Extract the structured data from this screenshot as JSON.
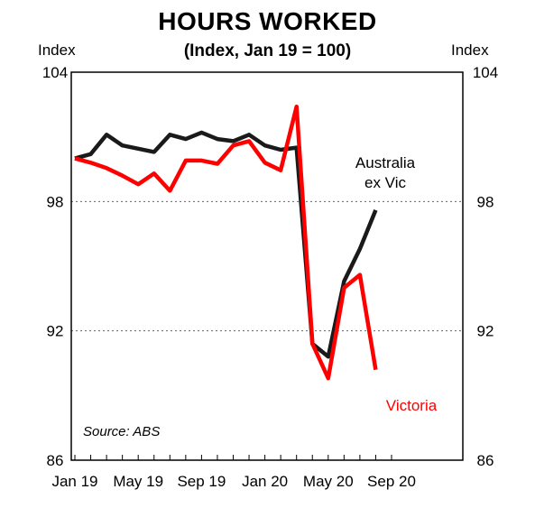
{
  "chart_data": {
    "type": "line",
    "title": "HOURS WORKED",
    "subtitle": "(Index, Jan 19 = 100)",
    "ylabel_left": "Index",
    "ylabel_right": "Index",
    "ylim": [
      86,
      104
    ],
    "yticks": [
      "104",
      "98",
      "92",
      "86"
    ],
    "xticks": [
      "Jan 19",
      "May 19",
      "Sep 19",
      "Jan 20",
      "May 20",
      "Sep 20"
    ],
    "grid": "horizontal dotted",
    "x": [
      "2019-01",
      "2019-02",
      "2019-03",
      "2019-04",
      "2019-05",
      "2019-06",
      "2019-07",
      "2019-08",
      "2019-09",
      "2019-10",
      "2019-11",
      "2019-12",
      "2020-01",
      "2020-02",
      "2020-03",
      "2020-04",
      "2020-05",
      "2020-06",
      "2020-07",
      "2020-08",
      "2020-09"
    ],
    "series": [
      {
        "name": "Australia ex Vic",
        "label_line1": "Australia",
        "label_line2": "ex Vic",
        "color": "#1a1a1a",
        "values": [
          100,
          100.2,
          101.1,
          100.6,
          100.45,
          100.3,
          101.1,
          100.9,
          101.2,
          100.9,
          100.8,
          101.1,
          100.6,
          100.4,
          100.5,
          91.4,
          90.8,
          94.3,
          95.8,
          97.6,
          null
        ]
      },
      {
        "name": "Victoria",
        "label_line1": "Victoria",
        "color": "#ff0000",
        "values": [
          100,
          99.8,
          99.55,
          99.2,
          98.8,
          99.3,
          98.5,
          99.9,
          99.9,
          99.75,
          100.6,
          100.8,
          99.8,
          99.45,
          102.4,
          91.4,
          89.8,
          94.0,
          94.6,
          90.2,
          null
        ]
      }
    ],
    "annotation": "Source: ABS"
  }
}
